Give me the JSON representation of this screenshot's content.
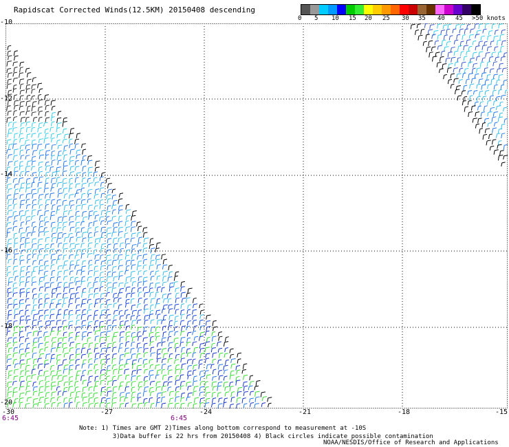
{
  "title": "Rapidscat Corrected Winds(12.5KM) 20150408 descending",
  "legend": {
    "labels": [
      "0",
      "5",
      "10",
      "15",
      "20",
      "25",
      "30",
      "35",
      "40",
      "45",
      ">50 knots"
    ],
    "colors": [
      "#555555",
      "#999999",
      "#00ccff",
      "#0099ff",
      "#0000ff",
      "#00cc00",
      "#33ee33",
      "#ffff00",
      "#ffcc00",
      "#ff9900",
      "#ff6600",
      "#ff0000",
      "#cc0000",
      "#996633",
      "#663300",
      "#ff66ff",
      "#cc00cc",
      "#6600cc",
      "#330066",
      "#000000"
    ]
  },
  "axes": {
    "y_labels": [
      "-10",
      "-12",
      "-14",
      "-16",
      "-18",
      "-20"
    ],
    "x_labels": [
      "-30",
      "-27",
      "-24",
      "-21",
      "-18",
      "-15"
    ],
    "time_labels": [
      "6:45",
      "6:45"
    ]
  },
  "notes": {
    "line1": "Note: 1) Times are GMT 2)Times along bottom correspond to measurement at -10S",
    "line2": "3)Data buffer is 22 hrs from 20150408 4) Black circles indicate possible contamination",
    "credit": "NOAA/NESDIS/Office of Research and Applications"
  }
}
